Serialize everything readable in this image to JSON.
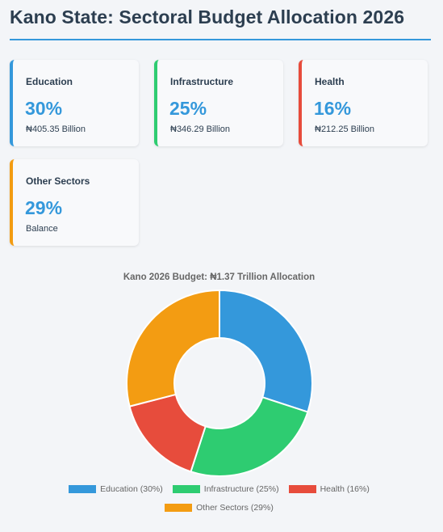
{
  "header": {
    "title": "Kano State: Sectoral Budget Allocation 2026"
  },
  "cards": [
    {
      "label": "Education",
      "value": "30%",
      "sub": "₦405.35 Billion",
      "color": "#3498db"
    },
    {
      "label": "Infrastructure",
      "value": "25%",
      "sub": "₦346.29 Billion",
      "color": "#2ecc71"
    },
    {
      "label": "Health",
      "value": "16%",
      "sub": "₦212.25 Billion",
      "color": "#e74c3c"
    },
    {
      "label": "Other Sectors",
      "value": "29%",
      "sub": "Balance",
      "color": "#f39c12"
    }
  ],
  "chart_data": {
    "type": "pie",
    "variant": "doughnut",
    "title": "Kano 2026 Budget: ₦1.37 Trillion Allocation",
    "categories": [
      "Education",
      "Infrastructure",
      "Health",
      "Other Sectors"
    ],
    "values": [
      30,
      25,
      16,
      29
    ],
    "colors": [
      "#3498db",
      "#2ecc71",
      "#e74c3c",
      "#f39c12"
    ],
    "legend_labels": [
      "Education (30%)",
      "Infrastructure (25%)",
      "Health (16%)",
      "Other Sectors (29%)"
    ],
    "legend_position": "bottom"
  }
}
